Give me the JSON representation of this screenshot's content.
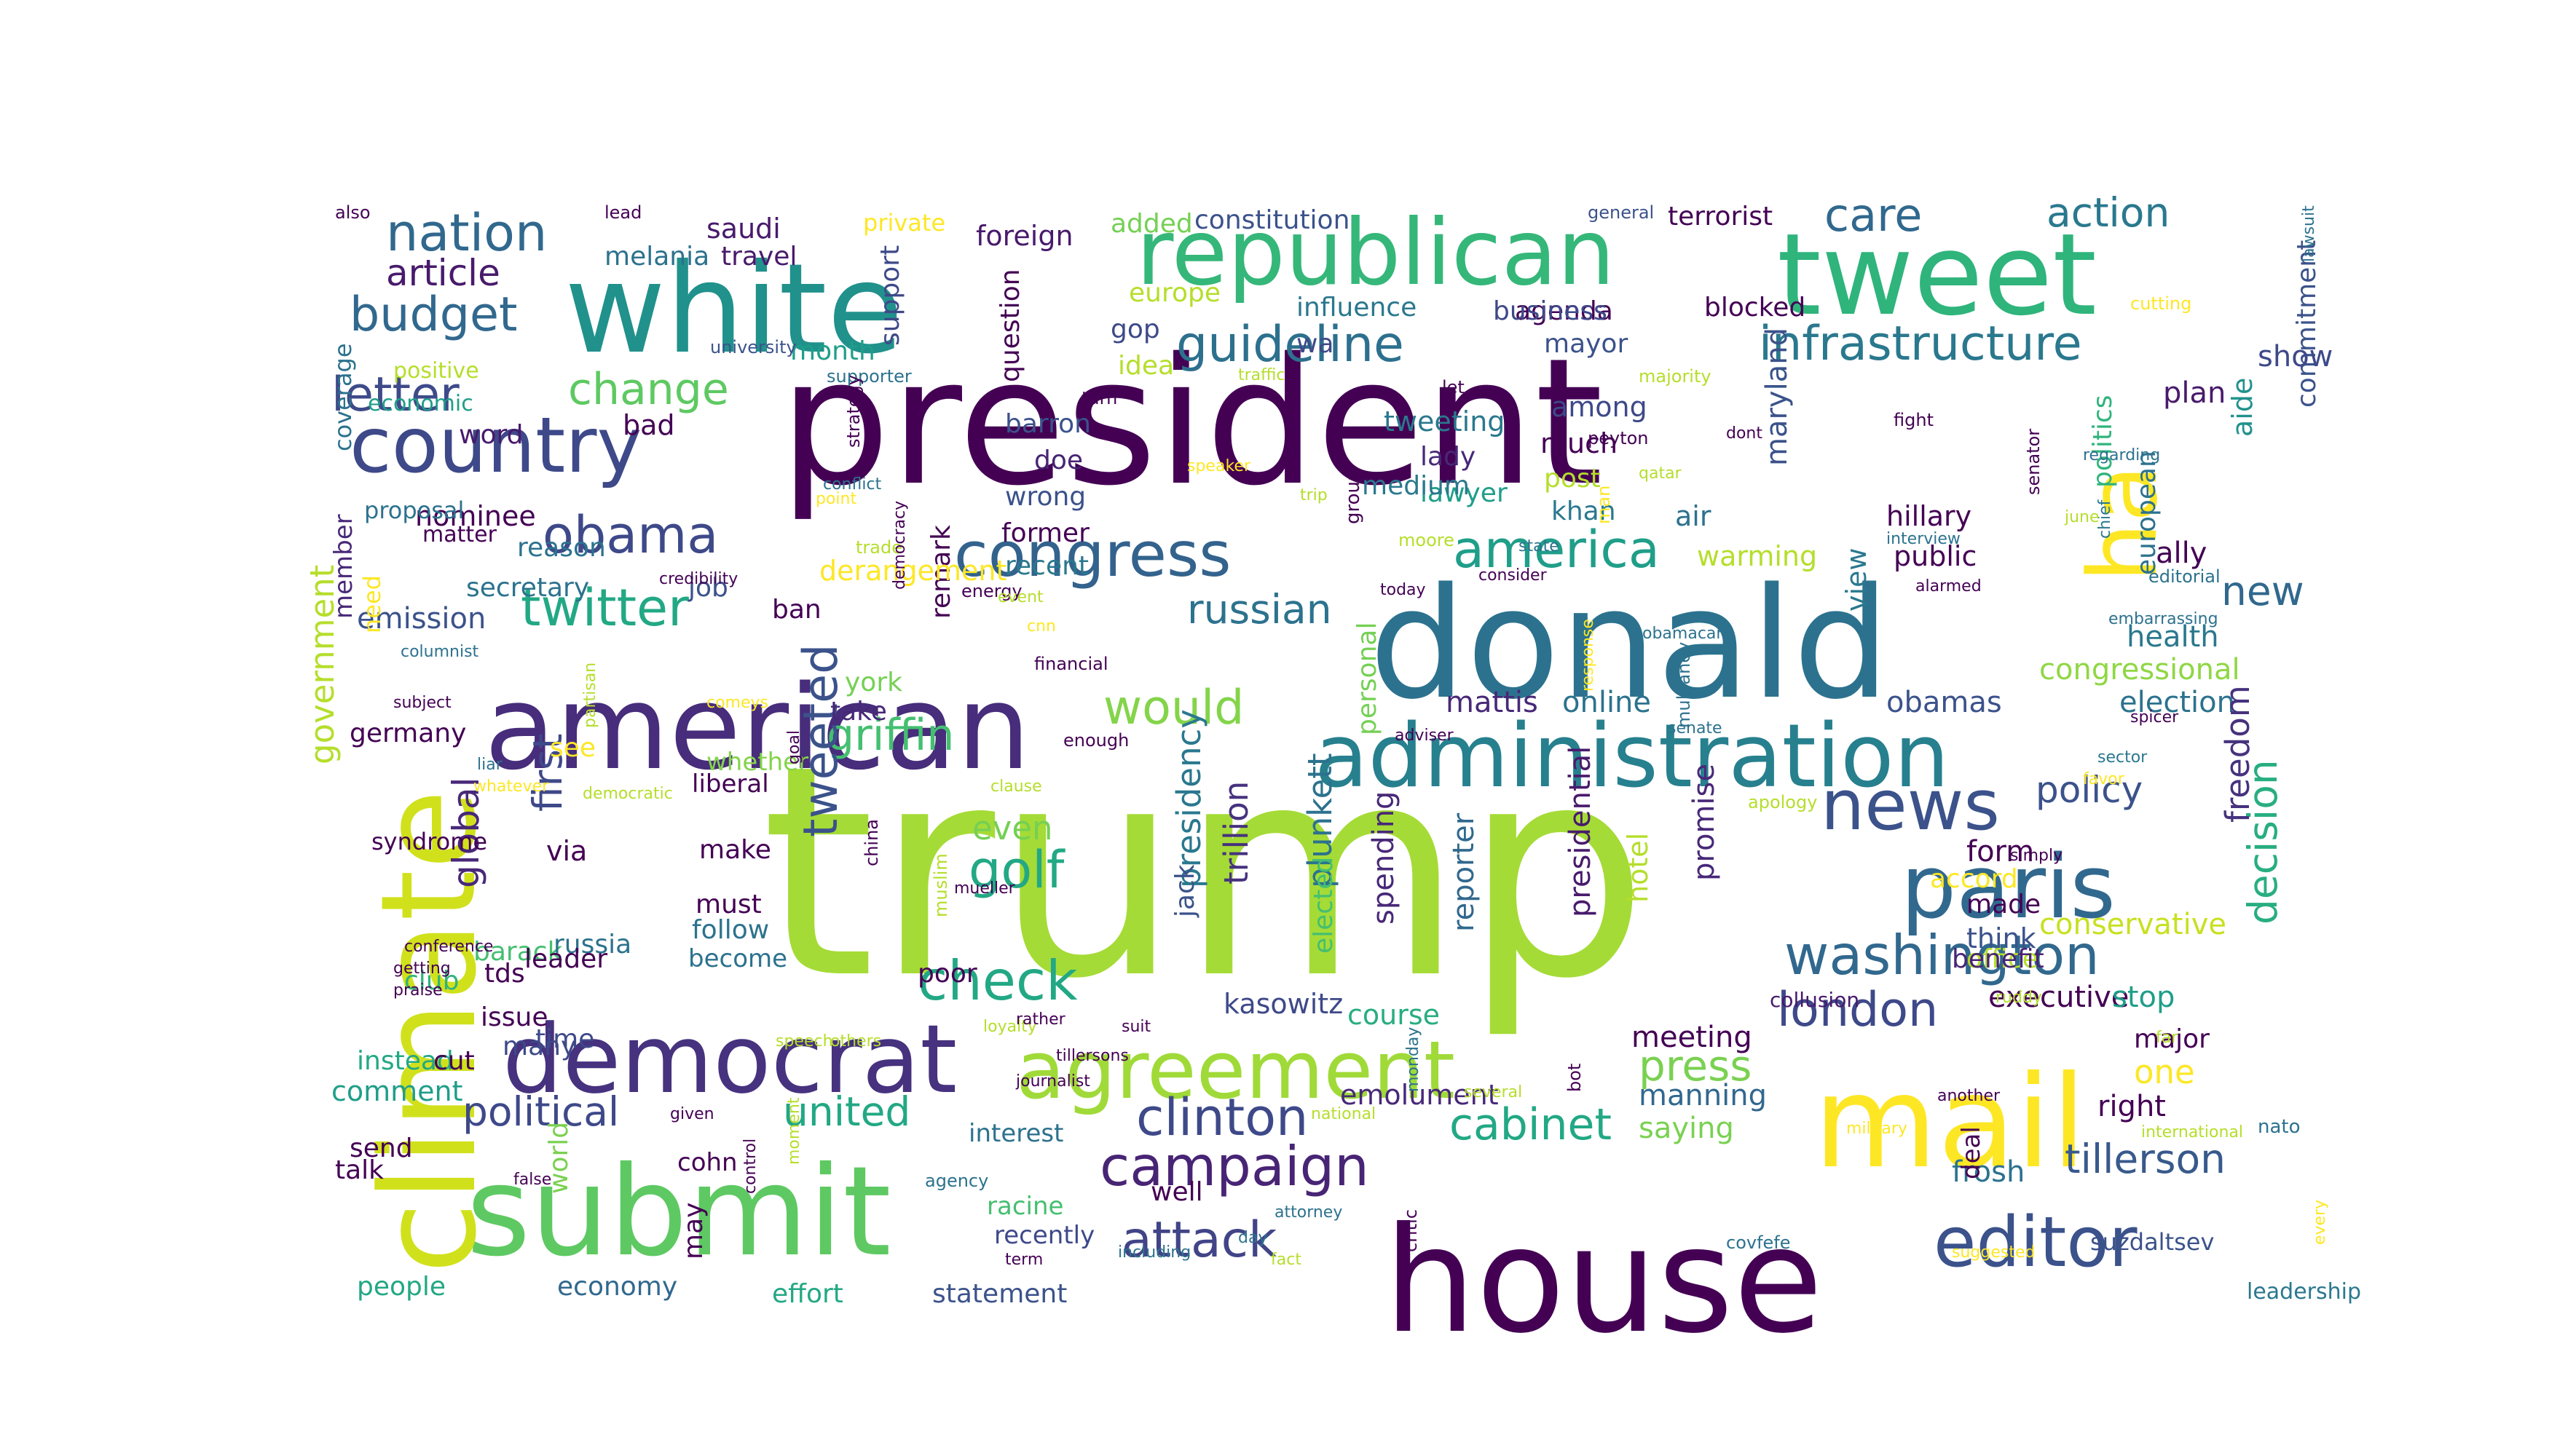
{
  "words": [
    {
      "text": "trump",
      "color": "#a5db36"
    },
    {
      "text": "president",
      "color": "#440154"
    },
    {
      "text": "donald",
      "color": "#2c728e"
    },
    {
      "text": "house",
      "color": "#440154"
    },
    {
      "text": "white",
      "color": "#21918c"
    },
    {
      "text": "republican",
      "color": "#35b779"
    },
    {
      "text": "tweet",
      "color": "#2fb47c"
    },
    {
      "text": "american",
      "color": "#472d7b"
    },
    {
      "text": "submit",
      "color": "#5ec962"
    },
    {
      "text": "climate",
      "color": "#d0e11c"
    },
    {
      "text": "mail",
      "color": "#fde725"
    },
    {
      "text": "administration",
      "color": "#27808e"
    },
    {
      "text": "democrat",
      "color": "#46327e"
    },
    {
      "text": "agreement",
      "color": "#a0da39"
    },
    {
      "text": "paris",
      "color": "#31688e"
    },
    {
      "text": "congress",
      "color": "#33638d"
    },
    {
      "text": "news",
      "color": "#3b528b"
    },
    {
      "text": "country",
      "color": "#3e4989"
    },
    {
      "text": "editor",
      "color": "#3b528b"
    },
    {
      "text": "ha",
      "color": "#fde725"
    },
    {
      "text": "america",
      "color": "#1f9e89"
    },
    {
      "text": "campaign",
      "color": "#482475"
    },
    {
      "text": "washington",
      "color": "#31688e"
    },
    {
      "text": "infrastructure",
      "color": "#2a788e"
    },
    {
      "text": "nation",
      "color": "#31688e"
    },
    {
      "text": "budget",
      "color": "#31688e"
    },
    {
      "text": "guideline",
      "color": "#2d708e"
    },
    {
      "text": "obama",
      "color": "#3e4989"
    },
    {
      "text": "letter",
      "color": "#3e4a89"
    },
    {
      "text": "change",
      "color": "#5ec962"
    },
    {
      "text": "twitter",
      "color": "#22a884"
    },
    {
      "text": "check",
      "color": "#22a884"
    },
    {
      "text": "golf",
      "color": "#22a884"
    },
    {
      "text": "would",
      "color": "#84d44b"
    },
    {
      "text": "griffin",
      "color": "#44bf70"
    },
    {
      "text": "clinton",
      "color": "#3e4989"
    },
    {
      "text": "attack",
      "color": "#414487"
    },
    {
      "text": "cabinet",
      "color": "#22a884"
    },
    {
      "text": "tillerson",
      "color": "#38598c"
    },
    {
      "text": "london",
      "color": "#3e4989"
    },
    {
      "text": "policy",
      "color": "#3b528b"
    },
    {
      "text": "press",
      "color": "#7ad151"
    },
    {
      "text": "political",
      "color": "#3e4989"
    },
    {
      "text": "united",
      "color": "#22a884"
    },
    {
      "text": "care",
      "color": "#31688e"
    },
    {
      "text": "action",
      "color": "#2a788e"
    },
    {
      "text": "tweeted",
      "color": "#3b528b"
    },
    {
      "text": "decision",
      "color": "#28ae80"
    },
    {
      "text": "russian",
      "color": "#2c728e"
    },
    {
      "text": "new",
      "color": "#31688e"
    },
    {
      "text": "article",
      "color": "#481a6c"
    },
    {
      "text": "global",
      "color": "#482878"
    },
    {
      "text": "first",
      "color": "#3e4989"
    },
    {
      "text": "even",
      "color": "#75d054"
    },
    {
      "text": "plunkett",
      "color": "#2c728e"
    },
    {
      "text": "presidency",
      "color": "#2a788e"
    },
    {
      "text": "trillion",
      "color": "#46327e"
    },
    {
      "text": "government",
      "color": "#b5de2b"
    },
    {
      "text": "emission",
      "color": "#3b528b"
    },
    {
      "text": "mattis",
      "color": "#482878"
    },
    {
      "text": "online",
      "color": "#2c728e"
    },
    {
      "text": "obamas",
      "color": "#3b528b"
    },
    {
      "text": "election",
      "color": "#2c728e"
    },
    {
      "text": "health",
      "color": "#2a788e"
    },
    {
      "text": "congressional",
      "color": "#8fd744"
    },
    {
      "text": "freedom",
      "color": "#46327e"
    },
    {
      "text": "conservative",
      "color": "#c8e020"
    },
    {
      "text": "executive",
      "color": "#440154"
    },
    {
      "text": "stop",
      "color": "#1f9e89"
    },
    {
      "text": "one",
      "color": "#fde725"
    },
    {
      "text": "right",
      "color": "#440154"
    },
    {
      "text": "major",
      "color": "#440154"
    },
    {
      "text": "frosh",
      "color": "#2c728e"
    },
    {
      "text": "suzdaltsev",
      "color": "#3b528b"
    },
    {
      "text": "meeting",
      "color": "#440154"
    },
    {
      "text": "manning",
      "color": "#31688e"
    },
    {
      "text": "saying",
      "color": "#7ad151"
    },
    {
      "text": "emolument",
      "color": "#482878"
    },
    {
      "text": "kasowitz",
      "color": "#3e4989"
    },
    {
      "text": "course",
      "color": "#27ad81"
    },
    {
      "text": "spending",
      "color": "#482878"
    },
    {
      "text": "reporter",
      "color": "#31688e"
    },
    {
      "text": "presidential",
      "color": "#481a6c"
    },
    {
      "text": "promise",
      "color": "#482878"
    },
    {
      "text": "hotel",
      "color": "#b5de2b"
    },
    {
      "text": "form",
      "color": "#440154"
    },
    {
      "text": "accord",
      "color": "#fde725"
    },
    {
      "text": "made",
      "color": "#440154"
    },
    {
      "text": "think",
      "color": "#3b528b"
    },
    {
      "text": "office",
      "color": "#b5de2b"
    },
    {
      "text": "benefit",
      "color": "#482475"
    },
    {
      "text": "maryland",
      "color": "#3b528b"
    },
    {
      "text": "air",
      "color": "#2c728e"
    },
    {
      "text": "warming",
      "color": "#b5de2b"
    },
    {
      "text": "hillary",
      "color": "#440154"
    },
    {
      "text": "public",
      "color": "#440154"
    },
    {
      "text": "view",
      "color": "#2a788e"
    },
    {
      "text": "politics",
      "color": "#2fb47c"
    },
    {
      "text": "plan",
      "color": "#481a6c"
    },
    {
      "text": "aide",
      "color": "#21918c"
    },
    {
      "text": "commitment",
      "color": "#3b528b"
    },
    {
      "text": "ally",
      "color": "#440154"
    },
    {
      "text": "european",
      "color": "#2c728e"
    },
    {
      "text": "show",
      "color": "#3e4989"
    },
    {
      "text": "blocked",
      "color": "#440154"
    },
    {
      "text": "terrorist",
      "color": "#440154"
    },
    {
      "text": "agenda",
      "color": "#440154"
    },
    {
      "text": "mayor",
      "color": "#3b528b"
    },
    {
      "text": "among",
      "color": "#3e4989"
    },
    {
      "text": "much",
      "color": "#440154"
    },
    {
      "text": "post",
      "color": "#b5de2b"
    },
    {
      "text": "khan",
      "color": "#2a788e"
    },
    {
      "text": "tweeting",
      "color": "#2a788e"
    },
    {
      "text": "lady",
      "color": "#482878"
    },
    {
      "text": "lawyer",
      "color": "#1f9e89"
    },
    {
      "text": "medium",
      "color": "#2a788e"
    },
    {
      "text": "business",
      "color": "#3e4989"
    },
    {
      "text": "influence",
      "color": "#2a788e"
    },
    {
      "text": "constitution",
      "color": "#3b528b"
    },
    {
      "text": "added",
      "color": "#75d054"
    },
    {
      "text": "foreign",
      "color": "#481a6c"
    },
    {
      "text": "europe",
      "color": "#b5de2b"
    },
    {
      "text": "gop",
      "color": "#3e4989"
    },
    {
      "text": "wa",
      "color": "#3e4989"
    },
    {
      "text": "idea",
      "color": "#b5de2b"
    },
    {
      "text": "barron",
      "color": "#3b528b"
    },
    {
      "text": "doe",
      "color": "#482475"
    },
    {
      "text": "wrong",
      "color": "#3b528b"
    },
    {
      "text": "former",
      "color": "#440154"
    },
    {
      "text": "recent",
      "color": "#2a788e"
    },
    {
      "text": "remark",
      "color": "#440154"
    },
    {
      "text": "derangement",
      "color": "#fde725"
    },
    {
      "text": "york",
      "color": "#75d054"
    },
    {
      "text": "take",
      "color": "#482878"
    },
    {
      "text": "ban",
      "color": "#440154"
    },
    {
      "text": "question",
      "color": "#440154"
    },
    {
      "text": "support",
      "color": "#3e4989"
    },
    {
      "text": "private",
      "color": "#fde725"
    },
    {
      "text": "saudi",
      "color": "#481a6c"
    },
    {
      "text": "travel",
      "color": "#481a6c"
    },
    {
      "text": "melania",
      "color": "#2c728e"
    },
    {
      "text": "month",
      "color": "#1f9e89"
    },
    {
      "text": "bad",
      "color": "#440154"
    },
    {
      "text": "word",
      "color": "#481a6c"
    },
    {
      "text": "nominee",
      "color": "#440154"
    },
    {
      "text": "reason",
      "color": "#2c728e"
    },
    {
      "text": "secretary",
      "color": "#2c728e"
    },
    {
      "text": "job",
      "color": "#3b528b"
    },
    {
      "text": "member",
      "color": "#482878"
    },
    {
      "text": "need",
      "color": "#fde725"
    },
    {
      "text": "coverage",
      "color": "#2c728e"
    },
    {
      "text": "economic",
      "color": "#1f9e89"
    },
    {
      "text": "proposal",
      "color": "#2c728e"
    },
    {
      "text": "germany",
      "color": "#440154"
    },
    {
      "text": "see",
      "color": "#fde725"
    },
    {
      "text": "whether",
      "color": "#84d44b"
    },
    {
      "text": "liberal",
      "color": "#440154"
    },
    {
      "text": "via",
      "color": "#440154"
    },
    {
      "text": "make",
      "color": "#440154"
    },
    {
      "text": "must",
      "color": "#440154"
    },
    {
      "text": "follow",
      "color": "#2c728e"
    },
    {
      "text": "become",
      "color": "#2c728e"
    },
    {
      "text": "barack",
      "color": "#44bf70"
    },
    {
      "text": "russia",
      "color": "#2c728e"
    },
    {
      "text": "leader",
      "color": "#440154"
    },
    {
      "text": "tds",
      "color": "#440154"
    },
    {
      "text": "club",
      "color": "#2fb47c"
    },
    {
      "text": "issue",
      "color": "#440154"
    },
    {
      "text": "many",
      "color": "#3e4989"
    },
    {
      "text": "time",
      "color": "#3e4989"
    },
    {
      "text": "instead",
      "color": "#22a884"
    },
    {
      "text": "cut",
      "color": "#440154"
    },
    {
      "text": "comment",
      "color": "#1f9e89"
    },
    {
      "text": "send",
      "color": "#440154"
    },
    {
      "text": "talk",
      "color": "#440154"
    },
    {
      "text": "world",
      "color": "#7ad151"
    },
    {
      "text": "people",
      "color": "#22a884"
    },
    {
      "text": "economy",
      "color": "#31688e"
    },
    {
      "text": "may",
      "color": "#440154"
    },
    {
      "text": "effort",
      "color": "#22a884"
    },
    {
      "text": "statement",
      "color": "#3b528b"
    },
    {
      "text": "recently",
      "color": "#3e4989"
    },
    {
      "text": "racine",
      "color": "#44bf70"
    },
    {
      "text": "interest",
      "color": "#2c728e"
    },
    {
      "text": "cohn",
      "color": "#440154"
    },
    {
      "text": "well",
      "color": "#440154"
    },
    {
      "text": "jack",
      "color": "#3b528b"
    },
    {
      "text": "poor",
      "color": "#440154"
    },
    {
      "text": "elected",
      "color": "#44bf70"
    },
    {
      "text": "personal",
      "color": "#75d054"
    },
    {
      "text": "syndrome",
      "color": "#440154"
    },
    {
      "text": "leadership",
      "color": "#2a788e"
    },
    {
      "text": "nato",
      "color": "#2c728e"
    },
    {
      "text": "collusion",
      "color": "#481a6c"
    },
    {
      "text": "deal",
      "color": "#440154"
    },
    {
      "text": "also",
      "color": "#440154"
    },
    {
      "text": "lead",
      "color": "#440154"
    },
    {
      "text": "general",
      "color": "#3b528b"
    },
    {
      "text": "lawsuit",
      "color": "#2c728e"
    },
    {
      "text": "cutting",
      "color": "#fde725"
    },
    {
      "text": "positive",
      "color": "#b5de2b"
    },
    {
      "text": "university",
      "color": "#3b528b"
    },
    {
      "text": "supporter",
      "color": "#2c728e"
    },
    {
      "text": "traffic",
      "color": "#b5de2b"
    },
    {
      "text": "turn",
      "color": "#440154"
    },
    {
      "text": "let",
      "color": "#440154"
    },
    {
      "text": "majority",
      "color": "#b5de2b"
    },
    {
      "text": "peyton",
      "color": "#440154"
    },
    {
      "text": "regarding",
      "color": "#2c728e"
    },
    {
      "text": "fight",
      "color": "#440154"
    },
    {
      "text": "dont",
      "color": "#440154"
    },
    {
      "text": "qatar",
      "color": "#b5de2b"
    },
    {
      "text": "chief",
      "color": "#2a788e"
    },
    {
      "text": "june",
      "color": "#b5de2b"
    },
    {
      "text": "senator",
      "color": "#440154"
    },
    {
      "text": "interview",
      "color": "#2c728e"
    },
    {
      "text": "alarmed",
      "color": "#440154"
    },
    {
      "text": "embarrassing",
      "color": "#2c728e"
    },
    {
      "text": "editorial",
      "color": "#2c728e"
    },
    {
      "text": "spicer",
      "color": "#440154"
    },
    {
      "text": "sector",
      "color": "#2a788e"
    },
    {
      "text": "favor",
      "color": "#fde725"
    },
    {
      "text": "apology",
      "color": "#b5de2b"
    },
    {
      "text": "simply",
      "color": "#440154"
    },
    {
      "text": "ruddy",
      "color": "#b5de2b"
    },
    {
      "text": "far",
      "color": "#b5de2b"
    },
    {
      "text": "another",
      "color": "#440154"
    },
    {
      "text": "international",
      "color": "#b5de2b"
    },
    {
      "text": "military",
      "color": "#fde725"
    },
    {
      "text": "every",
      "color": "#fde725"
    },
    {
      "text": "covfefe",
      "color": "#2c728e"
    },
    {
      "text": "suggested",
      "color": "#fde725"
    },
    {
      "text": "strategy",
      "color": "#440154"
    },
    {
      "text": "conflict",
      "color": "#2c728e"
    },
    {
      "text": "point",
      "color": "#fde725"
    },
    {
      "text": "speaker",
      "color": "#fde725"
    },
    {
      "text": "trip",
      "color": "#b5de2b"
    },
    {
      "text": "moore",
      "color": "#b5de2b"
    },
    {
      "text": "state",
      "color": "#2c728e"
    },
    {
      "text": "consider",
      "color": "#440154"
    },
    {
      "text": "today",
      "color": "#440154"
    },
    {
      "text": "group",
      "color": "#440154"
    },
    {
      "text": "trade",
      "color": "#b5de2b"
    },
    {
      "text": "energy",
      "color": "#440154"
    },
    {
      "text": "event",
      "color": "#b5de2b"
    },
    {
      "text": "cnn",
      "color": "#fde725"
    },
    {
      "text": "democracy",
      "color": "#440154"
    },
    {
      "text": "financial",
      "color": "#440154"
    },
    {
      "text": "credibility",
      "color": "#440154"
    },
    {
      "text": "columnist",
      "color": "#2c728e"
    },
    {
      "text": "subject",
      "color": "#440154"
    },
    {
      "text": "comeys",
      "color": "#fde725"
    },
    {
      "text": "partisan",
      "color": "#b5de2b"
    },
    {
      "text": "goal",
      "color": "#440154"
    },
    {
      "text": "enough",
      "color": "#440154"
    },
    {
      "text": "china",
      "color": "#440154"
    },
    {
      "text": "clause",
      "color": "#b5de2b"
    },
    {
      "text": "liar",
      "color": "#2c728e"
    },
    {
      "text": "whatever",
      "color": "#fde725"
    },
    {
      "text": "democratic",
      "color": "#b5de2b"
    },
    {
      "text": "conference",
      "color": "#440154"
    },
    {
      "text": "getting",
      "color": "#440154"
    },
    {
      "text": "praise",
      "color": "#440154"
    },
    {
      "text": "muslim",
      "color": "#b5de2b"
    },
    {
      "text": "mueller",
      "color": "#440154"
    },
    {
      "text": "others",
      "color": "#b5de2b"
    },
    {
      "text": "speech",
      "color": "#b5de2b"
    },
    {
      "text": "loyalty",
      "color": "#b5de2b"
    },
    {
      "text": "rather",
      "color": "#440154"
    },
    {
      "text": "suit",
      "color": "#440154"
    },
    {
      "text": "tillersons",
      "color": "#440154"
    },
    {
      "text": "journalist",
      "color": "#440154"
    },
    {
      "text": "false",
      "color": "#440154"
    },
    {
      "text": "given",
      "color": "#440154"
    },
    {
      "text": "moment",
      "color": "#b5de2b"
    },
    {
      "text": "control",
      "color": "#440154"
    },
    {
      "text": "agency",
      "color": "#2c728e"
    },
    {
      "text": "term",
      "color": "#440154"
    },
    {
      "text": "including",
      "color": "#2c728e"
    },
    {
      "text": "day",
      "color": "#2c728e"
    },
    {
      "text": "fact",
      "color": "#b5de2b"
    },
    {
      "text": "critic",
      "color": "#440154"
    },
    {
      "text": "attorney",
      "color": "#2c728e"
    },
    {
      "text": "national",
      "color": "#b5de2b"
    },
    {
      "text": "several",
      "color": "#b5de2b"
    },
    {
      "text": "monday",
      "color": "#2c728e"
    },
    {
      "text": "adviser",
      "color": "#440154"
    },
    {
      "text": "bot",
      "color": "#440154"
    },
    {
      "text": "mulvaney",
      "color": "#2c728e"
    },
    {
      "text": "obamacare",
      "color": "#2c728e"
    },
    {
      "text": "senate",
      "color": "#2c728e"
    },
    {
      "text": "man",
      "color": "#fde725"
    },
    {
      "text": "response",
      "color": "#fde725"
    },
    {
      "text": "matter",
      "color": "#440154"
    },
    {
      "text": "wall",
      "color": "#440154"
    },
    {
      "text": "id",
      "color": "#fde725"
    },
    {
      "text": "sander",
      "color": "#fde725"
    },
    {
      "text": "photo",
      "color": "#2c728e"
    }
  ]
}
